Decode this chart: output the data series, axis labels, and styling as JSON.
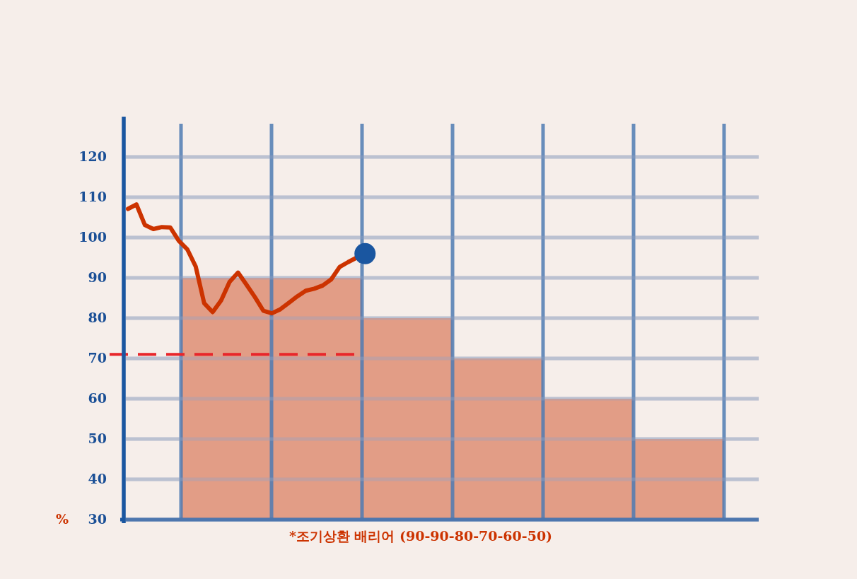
{
  "chart_data": [
    {
      "type": "bar",
      "xlabel": "*조기상환 배리어 (90-90-80-70-60-50)",
      "ylabel": "%",
      "categories": [
        null,
        null,
        null,
        null,
        null,
        null
      ],
      "values": [
        90,
        90,
        80,
        70,
        60,
        50
      ],
      "color": "#e0937b",
      "ref_lines": [
        {
          "axis": "y",
          "value": 71,
          "color": "#e8262b",
          "line_style": "dashed"
        }
      ],
      "ylim": [
        30,
        130
      ],
      "yticks": [
        30,
        40,
        50,
        60,
        70,
        80,
        90,
        100,
        110,
        120
      ],
      "grid": true,
      "tick_labels": false
    },
    {
      "type": "line",
      "categories": [
        null,
        null,
        null,
        null,
        null,
        null,
        null,
        null,
        null,
        null,
        null,
        null,
        null,
        null,
        null,
        null,
        null,
        null,
        null,
        null,
        null,
        null,
        null,
        null,
        null,
        null,
        null,
        null,
        null,
        null,
        null,
        null,
        null,
        null,
        null,
        null,
        null,
        null,
        null,
        null,
        null,
        null,
        null,
        null,
        null,
        null,
        null,
        null,
        null,
        null,
        null,
        null,
        null,
        null,
        null,
        null,
        null,
        null,
        null,
        null,
        null,
        null,
        null,
        null,
        null,
        null,
        null,
        null,
        null,
        null,
        null,
        null,
        null,
        null,
        null
      ],
      "series": [
        {
          "color": "#cc3300",
          "values": [
            107.1,
            108.2,
            103.1,
            102.1,
            102.6,
            102.5,
            99.2,
            97.1,
            92.8,
            83.7,
            81.5,
            84.4,
            89,
            91.3,
            88.3,
            85.2,
            81.8,
            81.2,
            82.2,
            83.8,
            85.4,
            86.8,
            87.3,
            88.1,
            89.6,
            92.7,
            93.9,
            95,
            96,
            null,
            null,
            null,
            null,
            null,
            null,
            null,
            null,
            null,
            null,
            null,
            null,
            null,
            null,
            null,
            null,
            null,
            null,
            null,
            null,
            null,
            null,
            null,
            null,
            null,
            null,
            null,
            null,
            null,
            null,
            null,
            null,
            null,
            null,
            null,
            null,
            null,
            null,
            null,
            null,
            null,
            null,
            null,
            null,
            null,
            null
          ]
        }
      ],
      "ylim": [
        30,
        130
      ],
      "yticks": [
        30,
        40,
        50,
        60,
        70,
        80,
        90,
        100,
        110,
        120
      ],
      "grid": "y"
    }
  ]
}
